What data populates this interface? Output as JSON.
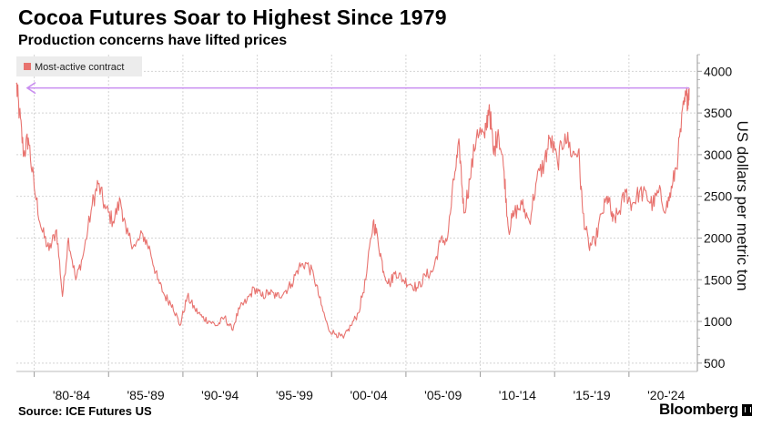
{
  "title": "Cocoa Futures Soar to Highest Since 1979",
  "subtitle": "Production concerns have lifted prices",
  "source": "Source: ICE Futures US",
  "brand": "Bloomberg",
  "colors": {
    "series": "#e8736f",
    "arrow": "#c98ef0",
    "grid": "#d4d4d4",
    "legend_bg": "#ececec"
  },
  "chart_data": {
    "type": "line",
    "legend": "Most-active contract",
    "legend_position": "top-left",
    "ylabel": "US dollars per metric ton",
    "y_axis_side": "right",
    "ylim": [
      400,
      4200
    ],
    "yticks": [
      500,
      1000,
      1500,
      2000,
      2500,
      3000,
      3500,
      4000
    ],
    "xlim": [
      1978.8,
      2024.6
    ],
    "xtick_labels": [
      "'80-'84",
      "'85-'89",
      "'90-'94",
      "'95-'99",
      "'00-'04",
      "'05-'09",
      "'10-'14",
      "'15-'19",
      "'20-'24"
    ],
    "grid": true,
    "annotation": "arrow from latest high back to 1979 level",
    "arrow_level": 3800,
    "series": [
      {
        "name": "Most-active contract",
        "points": [
          [
            1978.8,
            3850
          ],
          [
            1979.0,
            3500
          ],
          [
            1979.3,
            3000
          ],
          [
            1979.6,
            3200
          ],
          [
            1980.0,
            2600
          ],
          [
            1980.5,
            2100
          ],
          [
            1981.0,
            1850
          ],
          [
            1981.5,
            2100
          ],
          [
            1981.9,
            1300
          ],
          [
            1982.3,
            2000
          ],
          [
            1982.8,
            1500
          ],
          [
            1983.3,
            1800
          ],
          [
            1983.9,
            2400
          ],
          [
            1984.3,
            2650
          ],
          [
            1984.8,
            2350
          ],
          [
            1985.3,
            2200
          ],
          [
            1985.8,
            2450
          ],
          [
            1986.2,
            2050
          ],
          [
            1986.8,
            1900
          ],
          [
            1987.3,
            2050
          ],
          [
            1987.8,
            1850
          ],
          [
            1988.3,
            1500
          ],
          [
            1988.8,
            1300
          ],
          [
            1989.3,
            1200
          ],
          [
            1989.8,
            950
          ],
          [
            1990.3,
            1300
          ],
          [
            1990.8,
            1150
          ],
          [
            1991.3,
            1050
          ],
          [
            1991.8,
            1000
          ],
          [
            1992.3,
            950
          ],
          [
            1992.8,
            1050
          ],
          [
            1993.3,
            900
          ],
          [
            1993.8,
            1150
          ],
          [
            1994.3,
            1250
          ],
          [
            1994.8,
            1400
          ],
          [
            1995.3,
            1300
          ],
          [
            1995.8,
            1350
          ],
          [
            1996.3,
            1300
          ],
          [
            1996.8,
            1350
          ],
          [
            1997.3,
            1450
          ],
          [
            1997.8,
            1650
          ],
          [
            1998.3,
            1700
          ],
          [
            1998.8,
            1550
          ],
          [
            1999.3,
            1200
          ],
          [
            1999.8,
            900
          ],
          [
            2000.3,
            850
          ],
          [
            2000.8,
            800
          ],
          [
            2001.3,
            950
          ],
          [
            2001.8,
            1100
          ],
          [
            2002.3,
            1500
          ],
          [
            2002.8,
            2200
          ],
          [
            2003.1,
            2000
          ],
          [
            2003.5,
            1600
          ],
          [
            2003.9,
            1450
          ],
          [
            2004.3,
            1600
          ],
          [
            2004.8,
            1500
          ],
          [
            2005.3,
            1450
          ],
          [
            2005.8,
            1400
          ],
          [
            2006.3,
            1550
          ],
          [
            2006.8,
            1600
          ],
          [
            2007.3,
            1950
          ],
          [
            2007.8,
            2000
          ],
          [
            2008.3,
            2800
          ],
          [
            2008.6,
            3100
          ],
          [
            2008.9,
            2300
          ],
          [
            2009.3,
            2700
          ],
          [
            2009.8,
            3300
          ],
          [
            2010.3,
            3200
          ],
          [
            2010.6,
            3600
          ],
          [
            2010.9,
            3000
          ],
          [
            2011.2,
            3300
          ],
          [
            2011.6,
            2800
          ],
          [
            2011.9,
            2100
          ],
          [
            2012.3,
            2300
          ],
          [
            2012.8,
            2400
          ],
          [
            2013.3,
            2200
          ],
          [
            2013.8,
            2700
          ],
          [
            2014.3,
            2900
          ],
          [
            2014.7,
            3200
          ],
          [
            2015.2,
            2900
          ],
          [
            2015.7,
            3250
          ],
          [
            2016.2,
            3000
          ],
          [
            2016.6,
            3050
          ],
          [
            2016.9,
            2300
          ],
          [
            2017.3,
            1900
          ],
          [
            2017.7,
            1950
          ],
          [
            2018.2,
            2300
          ],
          [
            2018.6,
            2500
          ],
          [
            2018.9,
            2200
          ],
          [
            2019.3,
            2300
          ],
          [
            2019.8,
            2550
          ],
          [
            2020.2,
            2400
          ],
          [
            2020.7,
            2550
          ],
          [
            2021.2,
            2500
          ],
          [
            2021.6,
            2400
          ],
          [
            2022.0,
            2550
          ],
          [
            2022.5,
            2350
          ],
          [
            2022.9,
            2600
          ],
          [
            2023.3,
            3000
          ],
          [
            2023.7,
            3600
          ],
          [
            2023.95,
            3700
          ],
          [
            2024.05,
            3800
          ]
        ]
      }
    ]
  }
}
